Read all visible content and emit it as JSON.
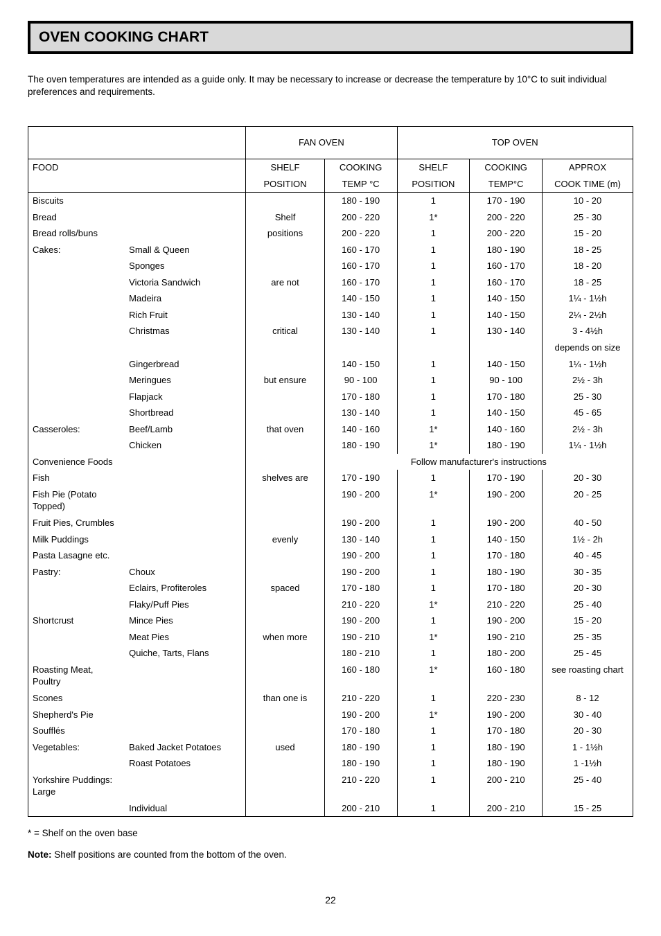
{
  "title": "OVEN COOKING CHART",
  "intro": "The oven temperatures are intended as a guide only.  It may be necessary to increase or decrease the temperature by 10°C to suit individual preferences and requirements.",
  "headers": {
    "fan_oven": "FAN OVEN",
    "top_oven": "TOP OVEN",
    "food": "FOOD",
    "shelf": "SHELF",
    "position": "POSITION",
    "cooking": "COOKING",
    "temp_c": "TEMP °C",
    "temp_c2": "TEMP°C",
    "approx": "APPROX",
    "cook_time": "COOK TIME (m)"
  },
  "shelf_notes": [
    "Shelf",
    "positions",
    "are not",
    "critical",
    "but ensure",
    "that oven",
    "shelves are",
    "evenly",
    "spaced",
    "when more",
    "than one is",
    "used"
  ],
  "rows": [
    {
      "f": "Biscuits",
      "s": "",
      "ft": "180 - 190",
      "sp": "1",
      "tt": "170 - 190",
      "ct": "10 - 20"
    },
    {
      "f": "Bread",
      "s": "",
      "ft": "200 - 220",
      "sp": "1*",
      "tt": "200 - 220",
      "ct": "25 - 30"
    },
    {
      "f": "Bread rolls/buns",
      "s": "",
      "ft": "200 - 220",
      "sp": "1",
      "tt": "200 - 220",
      "ct": "15 - 20"
    },
    {
      "f": "Cakes:",
      "s": "Small & Queen",
      "ft": "160 - 170",
      "sp": "1",
      "tt": "180 - 190",
      "ct": "18 - 25"
    },
    {
      "f": "",
      "s": "Sponges",
      "ft": "160 - 170",
      "sp": "1",
      "tt": "160 - 170",
      "ct": "18 - 20"
    },
    {
      "f": "",
      "s": "Victoria Sandwich",
      "ft": "160 - 170",
      "sp": "1",
      "tt": "160 - 170",
      "ct": "18 - 25"
    },
    {
      "f": "",
      "s": "Madeira",
      "ft": "140 - 150",
      "sp": "1",
      "tt": "140 - 150",
      "ct": "1¼ - 1½h"
    },
    {
      "f": "",
      "s": "Rich Fruit",
      "ft": "130 - 140",
      "sp": "1",
      "tt": "140 - 150",
      "ct": "2¼ - 2½h"
    },
    {
      "f": "",
      "s": "Christmas",
      "ft": "130 - 140",
      "sp": "1",
      "tt": "130 - 140",
      "ct": "3 - 4½h"
    },
    {
      "f": "",
      "s": "",
      "ft": "",
      "sp": "",
      "tt": "",
      "ct": "depends on size"
    },
    {
      "f": "",
      "s": "Gingerbread",
      "ft": "140 - 150",
      "sp": "1",
      "tt": "140 - 150",
      "ct": "1¼ - 1½h"
    },
    {
      "f": "",
      "s": "Meringues",
      "ft": "90 - 100",
      "sp": "1",
      "tt": "90 - 100",
      "ct": "2½ - 3h"
    },
    {
      "f": "",
      "s": "Flapjack",
      "ft": "170 - 180",
      "sp": "1",
      "tt": "170 - 180",
      "ct": "25 - 30"
    },
    {
      "f": "",
      "s": "Shortbread",
      "ft": "130 - 140",
      "sp": "1",
      "tt": "140 - 150",
      "ct": "45 - 65"
    },
    {
      "f": "Casseroles:",
      "s": "Beef/Lamb",
      "ft": "140 - 160",
      "sp": "1*",
      "tt": "140 - 160",
      "ct": "2½ - 3h"
    },
    {
      "f": "",
      "s": "Chicken",
      "ft": "180 - 190",
      "sp": "1*",
      "tt": "180 - 190",
      "ct": "1¼ - 1½h"
    },
    {
      "f": "Convenience Foods",
      "s": "",
      "ft": "__FOLLOW__",
      "sp": "",
      "tt": "",
      "ct": ""
    },
    {
      "f": "Fish",
      "s": "",
      "ft": "170 - 190",
      "sp": "1",
      "tt": "170 - 190",
      "ct": "20 - 30"
    },
    {
      "f": "Fish Pie (Potato Topped)",
      "s": "",
      "ft": "190 - 200",
      "sp": "1*",
      "tt": "190 - 200",
      "ct": "20 - 25"
    },
    {
      "f": "Fruit Pies, Crumbles",
      "s": "",
      "ft": "190 - 200",
      "sp": "1",
      "tt": "190 - 200",
      "ct": "40 - 50"
    },
    {
      "f": "Milk Puddings",
      "s": "",
      "ft": "130 - 140",
      "sp": "1",
      "tt": "140 - 150",
      "ct": "1½ - 2h"
    },
    {
      "f": "Pasta Lasagne etc.",
      "s": "",
      "ft": "190 - 200",
      "sp": "1",
      "tt": "170 - 180",
      "ct": "40 - 45"
    },
    {
      "f": "Pastry:",
      "s": "Choux",
      "ft": "190 - 200",
      "sp": "1",
      "tt": "180 - 190",
      "ct": "30 - 35"
    },
    {
      "f": "",
      "s": "Eclairs, Profiteroles",
      "ft": "170 - 180",
      "sp": "1",
      "tt": "170 - 180",
      "ct": "20 - 30"
    },
    {
      "f": "",
      "s": "Flaky/Puff Pies",
      "ft": "210 - 220",
      "sp": "1*",
      "tt": "210 - 220",
      "ct": "25 - 40"
    },
    {
      "f": "Shortcrust",
      "s": "Mince Pies",
      "ft": "190 - 200",
      "sp": "1",
      "tt": "190 - 200",
      "ct": "15 - 20"
    },
    {
      "f": "",
      "s": "Meat Pies",
      "ft": "190 - 210",
      "sp": "1*",
      "tt": "190 - 210",
      "ct": "25 - 35"
    },
    {
      "f": "",
      "s": "Quiche, Tarts, Flans",
      "ft": "180 - 210",
      "sp": "1",
      "tt": "180 - 200",
      "ct": "25 - 45"
    },
    {
      "f": "Roasting Meat, Poultry",
      "s": "",
      "ft": "160 - 180",
      "sp": "1*",
      "tt": "160 - 180",
      "ct": "see roasting chart"
    },
    {
      "f": "Scones",
      "s": "",
      "ft": "210 - 220",
      "sp": "1",
      "tt": "220 - 230",
      "ct": "8 - 12"
    },
    {
      "f": "Shepherd's Pie",
      "s": "",
      "ft": "190 - 200",
      "sp": "1*",
      "tt": "190 - 200",
      "ct": "30 - 40"
    },
    {
      "f": "Soufflés",
      "s": "",
      "ft": "170 - 180",
      "sp": "1",
      "tt": "170 - 180",
      "ct": "20 - 30"
    },
    {
      "f": "Vegetables:",
      "s": "Baked Jacket Potatoes",
      "ft": "180 - 190",
      "sp": "1",
      "tt": "180 - 190",
      "ct": "1 - 1½h"
    },
    {
      "f": "",
      "s": "Roast Potatoes",
      "ft": "180 - 190",
      "sp": "1",
      "tt": "180 - 190",
      "ct": "1 -1½h"
    },
    {
      "f": "Yorkshire Puddings: Large",
      "s": "",
      "ft": "210 - 220",
      "sp": "1",
      "tt": "200 - 210",
      "ct": "25 - 40"
    },
    {
      "f": "",
      "s": "Individual",
      "ft": "200 - 210",
      "sp": "1",
      "tt": "200 - 210",
      "ct": "15 - 25"
    }
  ],
  "follow_text": "Follow manufacturer's instructions",
  "footnote1": "* = Shelf on the oven base",
  "footnote2_bold": "Note:",
  "footnote2_rest": " Shelf positions are counted from the bottom of the oven.",
  "page_number": "22",
  "layout": {
    "col_widths_pct": [
      16,
      20,
      13,
      12,
      12,
      12,
      15
    ],
    "shelf_note_row_map": {
      "1": 0,
      "2": 1,
      "5": 2,
      "8": 3,
      "11": 4,
      "14": 5,
      "17": 6,
      "20": 7,
      "23": 8,
      "26": 9,
      "29": 10,
      "32": 11,
      "35": 12
    }
  },
  "style": {
    "title_bg": "#d9d9d9",
    "border_color": "#000000",
    "font_family": "Arial, Helvetica, sans-serif",
    "body_fontsize": 13,
    "title_fontsize": 21
  }
}
